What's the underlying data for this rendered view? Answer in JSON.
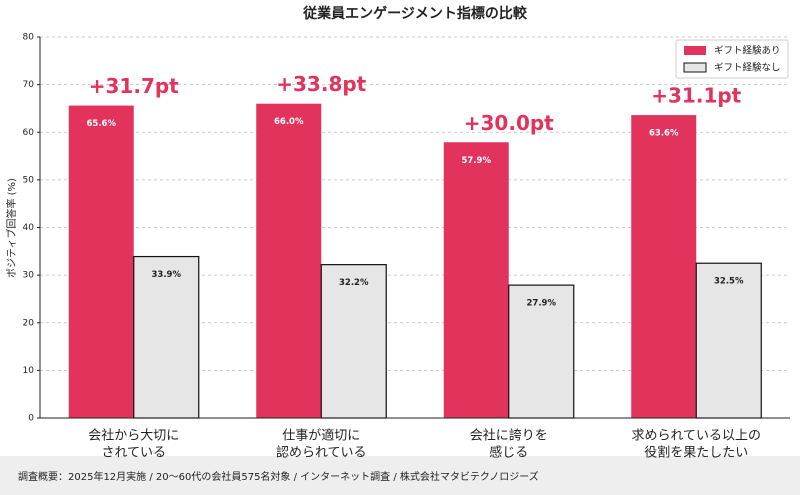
{
  "chart_data": {
    "type": "bar",
    "title": "従業員エンゲージメント指標の比較",
    "y_label": "ポジティブ回答率 (%)",
    "categories": [
      [
        "会社から大切に",
        "されている"
      ],
      [
        "仕事が適切に",
        "認められている"
      ],
      [
        "会社に誇りを",
        "感じる"
      ],
      [
        "求められている以上の",
        "役割を果たしたい"
      ]
    ],
    "series": [
      {
        "name": "ギフト経験あり",
        "color": "#e2335d",
        "values": [
          65.6,
          66.0,
          57.9,
          63.6
        ],
        "value_labels": [
          "65.6%",
          "66.0%",
          "57.9%",
          "63.6%"
        ]
      },
      {
        "name": "ギフト経験なし",
        "color": "#e6e6e6",
        "values": [
          33.9,
          32.2,
          27.9,
          32.5
        ],
        "value_labels": [
          "33.9%",
          "32.2%",
          "27.9%",
          "32.5%"
        ]
      }
    ],
    "annotations": [
      "+31.7pt",
      "+33.8pt",
      "+30.0pt",
      "+31.1pt"
    ],
    "annotation_color": "#e2335d",
    "ylim": [
      0,
      80
    ],
    "yticks": [
      0,
      10,
      20,
      30,
      40,
      50,
      60,
      70,
      80
    ],
    "grid": true,
    "legend": "upper right",
    "footnote": "調査概要：2025年12月実施 / 20〜60代の会社員575名対象 / インターネット調査 / 株式会社マタビテクノロジーズ"
  }
}
